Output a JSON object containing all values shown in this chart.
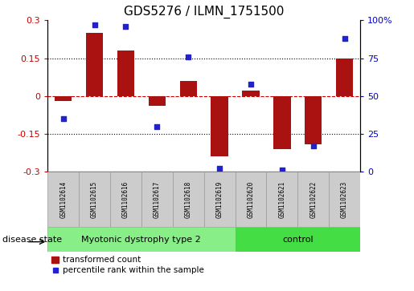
{
  "title": "GDS5276 / ILMN_1751500",
  "samples": [
    "GSM1102614",
    "GSM1102615",
    "GSM1102616",
    "GSM1102617",
    "GSM1102618",
    "GSM1102619",
    "GSM1102620",
    "GSM1102621",
    "GSM1102622",
    "GSM1102623"
  ],
  "transformed_count": [
    -0.02,
    0.25,
    0.18,
    -0.04,
    0.06,
    -0.24,
    0.02,
    -0.21,
    -0.19,
    0.15
  ],
  "percentile_rank": [
    35,
    97,
    96,
    30,
    76,
    2,
    58,
    1,
    17,
    88
  ],
  "ylim_left": [
    -0.3,
    0.3
  ],
  "ylim_right": [
    0,
    100
  ],
  "yticks_left": [
    -0.3,
    -0.15,
    0.0,
    0.15,
    0.3
  ],
  "yticks_right": [
    0,
    25,
    50,
    75,
    100
  ],
  "hline_dotted": [
    0.15,
    -0.15
  ],
  "hline_dashed": 0.0,
  "bar_color": "#aa1111",
  "dot_color": "#2222cc",
  "disease_groups": [
    {
      "label": "Myotonic dystrophy type 2",
      "start": 0,
      "end": 5,
      "color": "#88ee88"
    },
    {
      "label": "control",
      "start": 6,
      "end": 9,
      "color": "#44dd44"
    }
  ],
  "disease_state_label": "disease state",
  "legend_bar_label": "transformed count",
  "legend_dot_label": "percentile rank within the sample",
  "tick_box_color": "#cccccc",
  "left_ytick_labels": [
    "-0.3",
    "-0.15",
    "0",
    "0.15",
    "0.3"
  ],
  "right_ytick_labels": [
    "0",
    "25",
    "50",
    "75",
    "100%"
  ]
}
